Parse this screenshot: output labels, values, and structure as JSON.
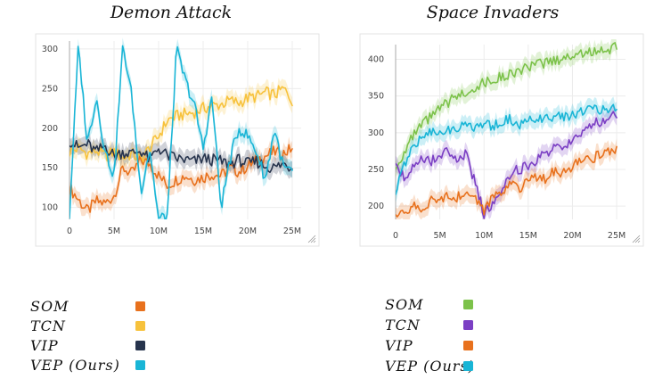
{
  "chart_data": [
    {
      "type": "line",
      "title": "Demon Attack",
      "xlabel": "",
      "ylabel": "",
      "xlim": [
        0,
        26000000
      ],
      "ylim": [
        85,
        310
      ],
      "x_ticks": [
        0,
        5000000,
        10000000,
        15000000,
        20000000,
        25000000
      ],
      "x_tick_labels": [
        "0",
        "5M",
        "10M",
        "15M",
        "20M",
        "25M"
      ],
      "y_ticks": [
        100,
        150,
        200,
        250,
        300
      ],
      "y_tick_labels": [
        "100",
        "150",
        "200",
        "250",
        "300"
      ],
      "grid": true,
      "x": [
        0,
        1000000,
        2000000,
        3000000,
        4000000,
        5000000,
        6000000,
        7000000,
        8000000,
        9000000,
        10000000,
        11000000,
        12000000,
        13000000,
        14000000,
        15000000,
        16000000,
        17000000,
        18000000,
        19000000,
        20000000,
        21000000,
        22000000,
        23000000,
        24000000,
        25000000
      ],
      "series": [
        {
          "name": "SOM",
          "color": "#e8711d",
          "values": [
            125,
            110,
            95,
            108,
            105,
            115,
            150,
            142,
            160,
            155,
            140,
            128,
            135,
            140,
            135,
            138,
            142,
            140,
            150,
            145,
            152,
            160,
            165,
            170,
            168,
            175
          ]
        },
        {
          "name": "TCN",
          "color": "#f7c23c",
          "values": [
            170,
            175,
            168,
            172,
            165,
            170,
            162,
            168,
            160,
            175,
            190,
            210,
            215,
            218,
            220,
            225,
            228,
            230,
            235,
            232,
            238,
            240,
            245,
            242,
            250,
            235
          ]
        },
        {
          "name": "VIP",
          "color": "#27344d",
          "values": [
            185,
            175,
            180,
            170,
            178,
            165,
            170,
            168,
            172,
            160,
            175,
            165,
            162,
            160,
            158,
            162,
            160,
            158,
            155,
            160,
            155,
            158,
            152,
            150,
            155,
            150
          ]
        },
        {
          "name": "VEP (Ours)",
          "color": "#19b5d6",
          "values": [
            90,
            305,
            180,
            240,
            170,
            140,
            305,
            240,
            120,
            175,
            85,
            90,
            300,
            260,
            230,
            175,
            240,
            100,
            160,
            200,
            190,
            170,
            135,
            200,
            150,
            145
          ]
        }
      ]
    },
    {
      "type": "line",
      "title": "Space Invaders",
      "xlabel": "",
      "ylabel": "",
      "xlim": [
        0,
        26000000
      ],
      "ylim": [
        182,
        420
      ],
      "x_ticks": [
        0,
        5000000,
        10000000,
        15000000,
        20000000,
        25000000
      ],
      "x_tick_labels": [
        "0",
        "5M",
        "10M",
        "15M",
        "20M",
        "25M"
      ],
      "y_ticks": [
        200,
        250,
        300,
        350,
        400
      ],
      "y_tick_labels": [
        "200",
        "250",
        "300",
        "350",
        "400"
      ],
      "grid": true,
      "x": [
        0,
        1000000,
        2000000,
        3000000,
        4000000,
        5000000,
        6000000,
        7000000,
        8000000,
        9000000,
        10000000,
        11000000,
        12000000,
        13000000,
        14000000,
        15000000,
        16000000,
        17000000,
        18000000,
        19000000,
        20000000,
        21000000,
        22000000,
        23000000,
        24000000,
        25000000
      ],
      "series": [
        {
          "name": "SOM",
          "color": "#7cc24a",
          "values": [
            250,
            275,
            295,
            310,
            322,
            332,
            342,
            350,
            356,
            362,
            368,
            372,
            376,
            380,
            385,
            388,
            392,
            396,
            398,
            402,
            405,
            408,
            410,
            412,
            414,
            416
          ]
        },
        {
          "name": "TCN",
          "color": "#7b3fc4",
          "values": [
            255,
            240,
            255,
            268,
            262,
            270,
            275,
            258,
            272,
            230,
            190,
            205,
            225,
            245,
            250,
            255,
            262,
            272,
            282,
            275,
            290,
            300,
            310,
            315,
            318,
            325
          ]
        },
        {
          "name": "VIP",
          "color": "#e8711d",
          "values": [
            185,
            190,
            200,
            195,
            210,
            205,
            215,
            212,
            220,
            210,
            195,
            215,
            220,
            230,
            225,
            235,
            240,
            238,
            248,
            245,
            255,
            260,
            262,
            270,
            275,
            275
          ]
        },
        {
          "name": "VEP (Ours)",
          "color": "#19b5d6",
          "values": [
            220,
            255,
            280,
            295,
            300,
            305,
            302,
            308,
            310,
            305,
            312,
            308,
            315,
            318,
            310,
            316,
            320,
            318,
            322,
            320,
            325,
            328,
            330,
            332,
            330,
            335
          ]
        }
      ]
    }
  ]
}
